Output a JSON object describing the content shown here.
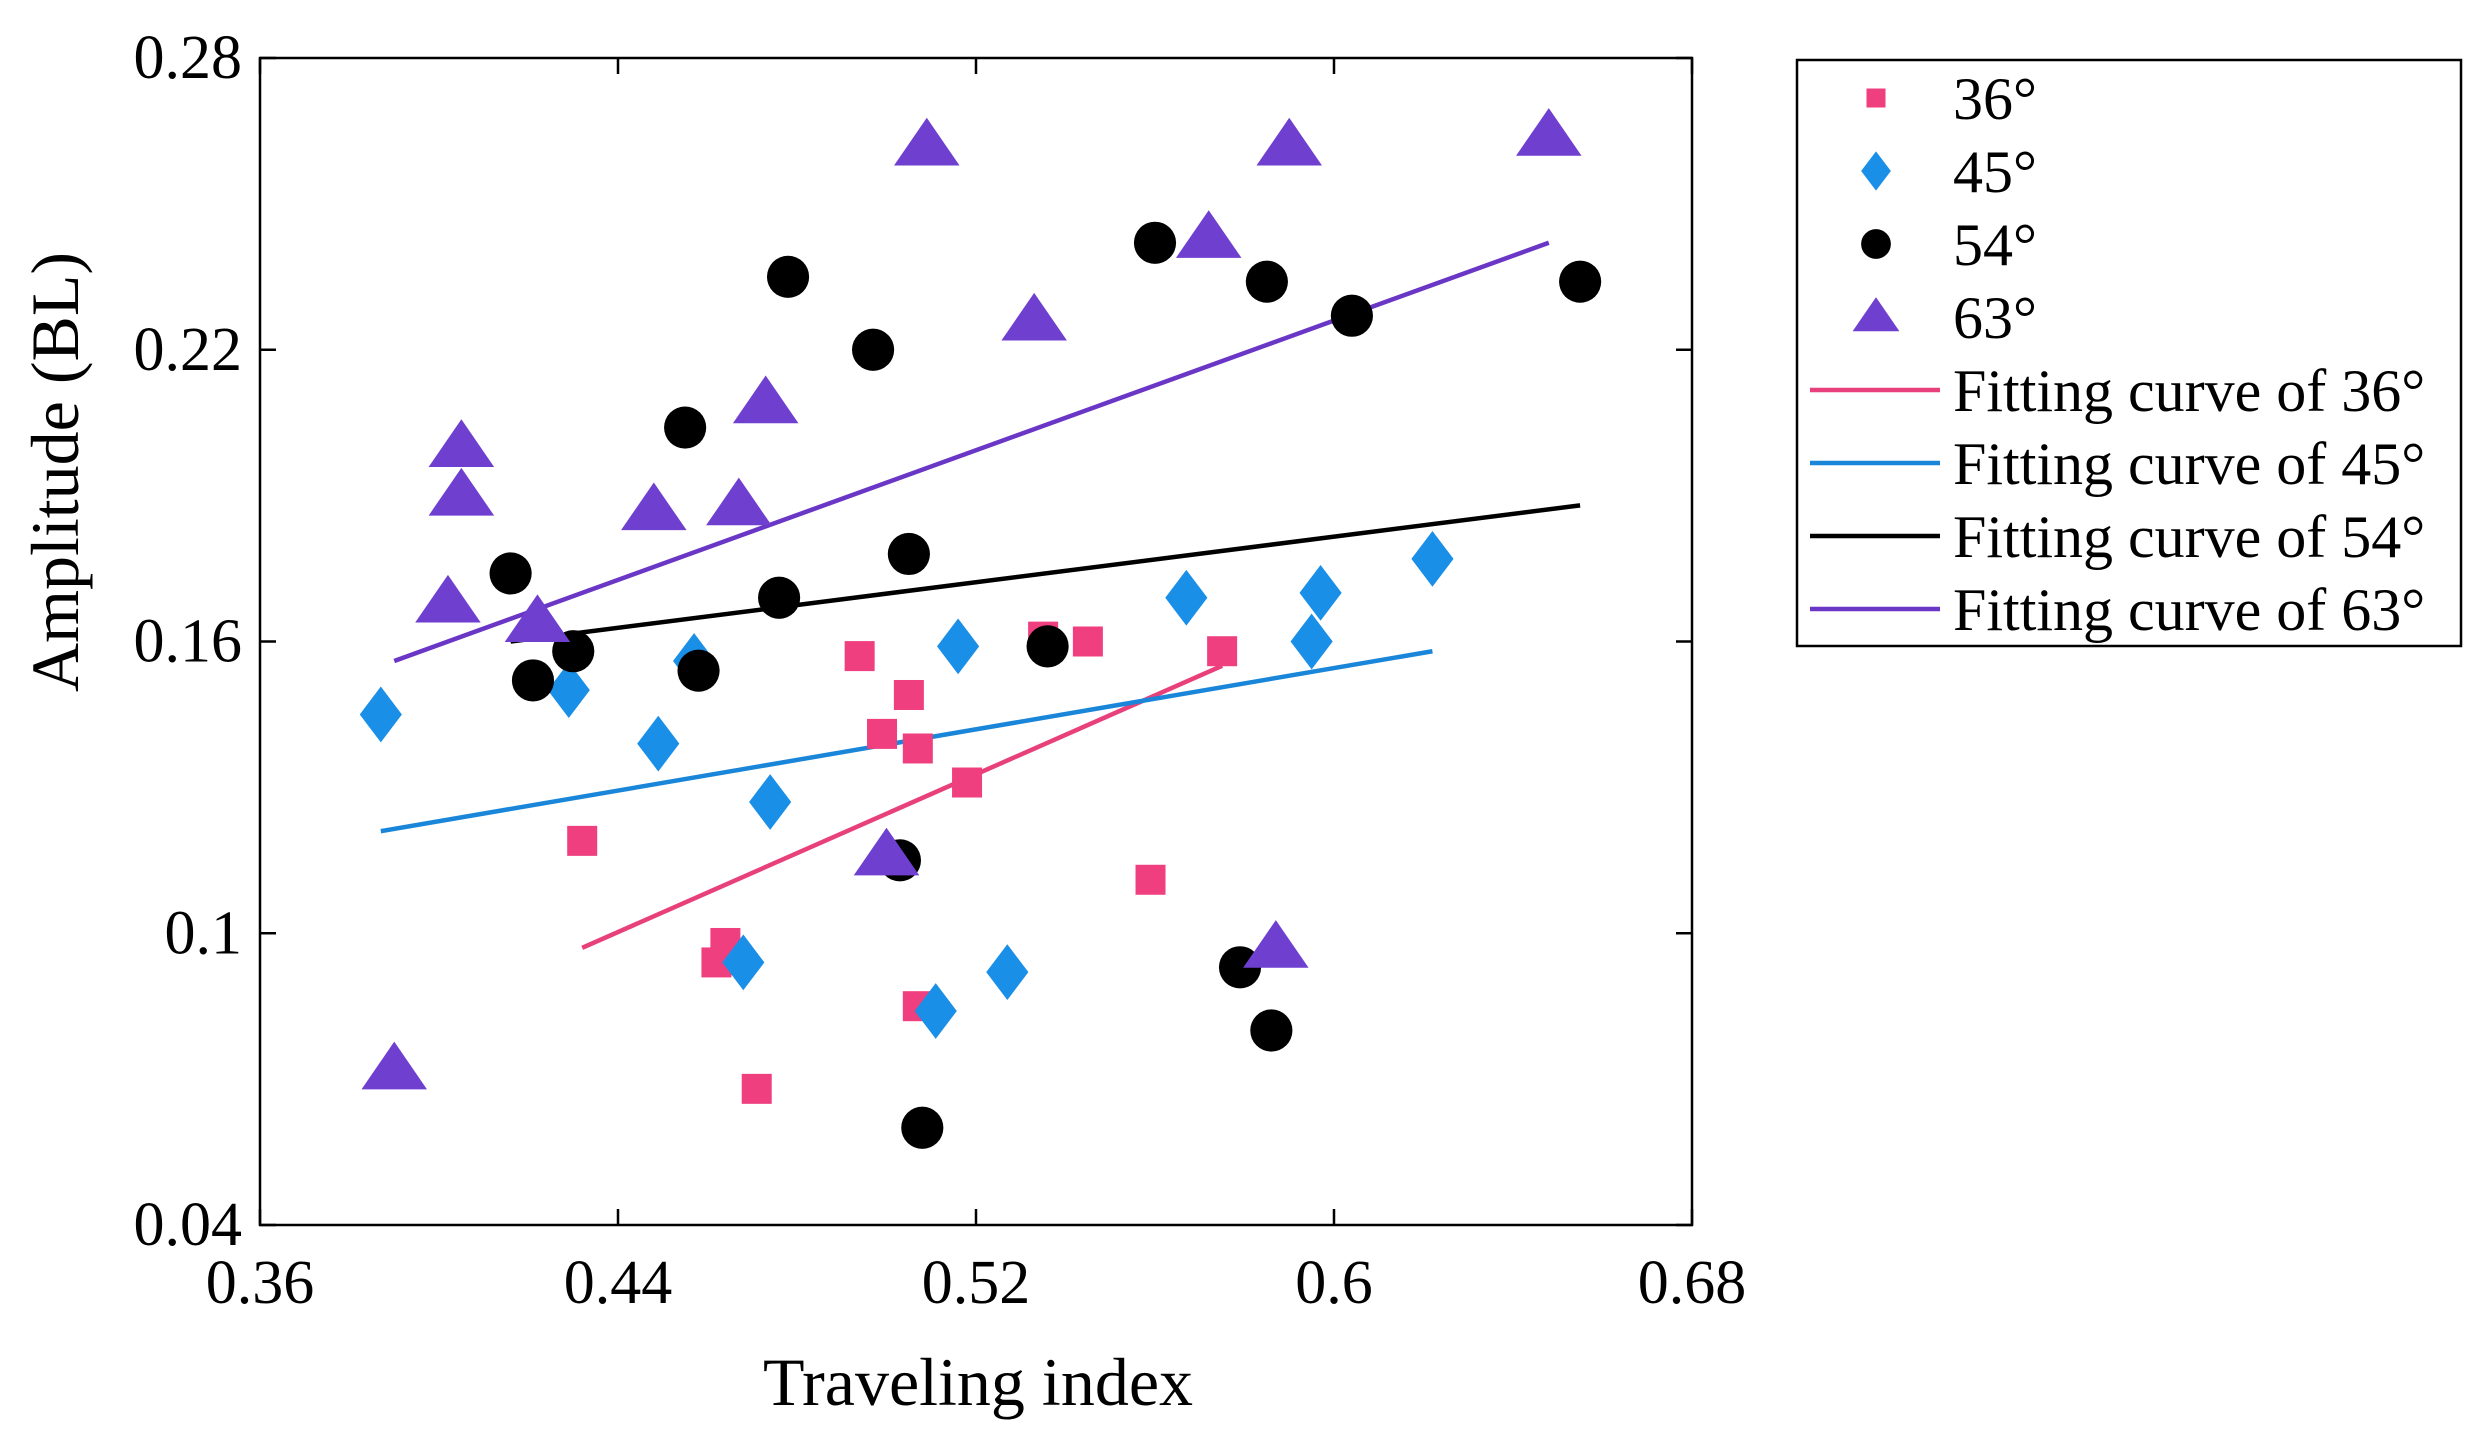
{
  "chart_data": {
    "type": "scatter",
    "title": "",
    "xlabel": "Traveling index",
    "ylabel": "Amplitude (BL)",
    "xlim": [
      0.36,
      0.68
    ],
    "ylim": [
      0.04,
      0.28
    ],
    "xticks": [
      0.36,
      0.44,
      0.52,
      0.6,
      0.68
    ],
    "xtick_labels": [
      "0.36",
      "0.44",
      "0.52",
      "0.6",
      "0.68"
    ],
    "yticks": [
      0.04,
      0.1,
      0.16,
      0.22,
      0.28
    ],
    "ytick_labels": [
      "0.04",
      "0.1",
      "0.16",
      "0.22",
      "0.28"
    ],
    "grid": false,
    "legend_position": "outside-right",
    "series": [
      {
        "name": "36°",
        "marker": "square",
        "color": "#ef3f7f",
        "points": [
          [
            0.432,
            0.119
          ],
          [
            0.462,
            0.094
          ],
          [
            0.464,
            0.098
          ],
          [
            0.471,
            0.068
          ],
          [
            0.494,
            0.157
          ],
          [
            0.499,
            0.141
          ],
          [
            0.505,
            0.149
          ],
          [
            0.507,
            0.138
          ],
          [
            0.507,
            0.085
          ],
          [
            0.518,
            0.131
          ],
          [
            0.535,
            0.161
          ],
          [
            0.545,
            0.16
          ],
          [
            0.559,
            0.111
          ],
          [
            0.575,
            0.158
          ]
        ]
      },
      {
        "name": "45°",
        "marker": "diamond",
        "color": "#1a8fe8",
        "points": [
          [
            0.387,
            0.145
          ],
          [
            0.429,
            0.15
          ],
          [
            0.449,
            0.139
          ],
          [
            0.457,
            0.156
          ],
          [
            0.468,
            0.094
          ],
          [
            0.474,
            0.127
          ],
          [
            0.511,
            0.084
          ],
          [
            0.516,
            0.159
          ],
          [
            0.527,
            0.092
          ],
          [
            0.567,
            0.169
          ],
          [
            0.595,
            0.16
          ],
          [
            0.597,
            0.17
          ],
          [
            0.622,
            0.177
          ]
        ]
      },
      {
        "name": "54°",
        "marker": "circle",
        "color": "#000000",
        "points": [
          [
            0.416,
            0.174
          ],
          [
            0.421,
            0.152
          ],
          [
            0.43,
            0.158
          ],
          [
            0.455,
            0.204
          ],
          [
            0.458,
            0.154
          ],
          [
            0.476,
            0.169
          ],
          [
            0.478,
            0.235
          ],
          [
            0.497,
            0.22
          ],
          [
            0.503,
            0.115
          ],
          [
            0.505,
            0.178
          ],
          [
            0.508,
            0.06
          ],
          [
            0.536,
            0.159
          ],
          [
            0.56,
            0.242
          ],
          [
            0.579,
            0.093
          ],
          [
            0.585,
            0.234
          ],
          [
            0.586,
            0.08
          ],
          [
            0.604,
            0.227
          ],
          [
            0.655,
            0.234
          ]
        ]
      },
      {
        "name": "63°",
        "marker": "triangle",
        "color": "#6f3fd0",
        "points": [
          [
            0.39,
            0.072
          ],
          [
            0.402,
            0.168
          ],
          [
            0.405,
            0.2
          ],
          [
            0.405,
            0.19
          ],
          [
            0.422,
            0.164
          ],
          [
            0.448,
            0.187
          ],
          [
            0.467,
            0.188
          ],
          [
            0.473,
            0.209
          ],
          [
            0.5,
            0.116
          ],
          [
            0.509,
            0.262
          ],
          [
            0.533,
            0.226
          ],
          [
            0.572,
            0.243
          ],
          [
            0.587,
            0.097
          ],
          [
            0.59,
            0.262
          ],
          [
            0.648,
            0.264
          ]
        ]
      }
    ],
    "fit_lines": [
      {
        "name": "Fitting curve of 36°",
        "color": "#e8407a",
        "x": [
          0.432,
          0.575
        ],
        "y": [
          0.097,
          0.155
        ]
      },
      {
        "name": "Fitting curve of 45°",
        "color": "#1a86d9",
        "x": [
          0.387,
          0.622
        ],
        "y": [
          0.121,
          0.158
        ]
      },
      {
        "name": "Fitting curve of 54°",
        "color": "#000000",
        "x": [
          0.416,
          0.655
        ],
        "y": [
          0.16,
          0.188
        ]
      },
      {
        "name": "Fitting curve of 63°",
        "color": "#6a36c6",
        "x": [
          0.39,
          0.648
        ],
        "y": [
          0.156,
          0.242
        ]
      }
    ]
  }
}
